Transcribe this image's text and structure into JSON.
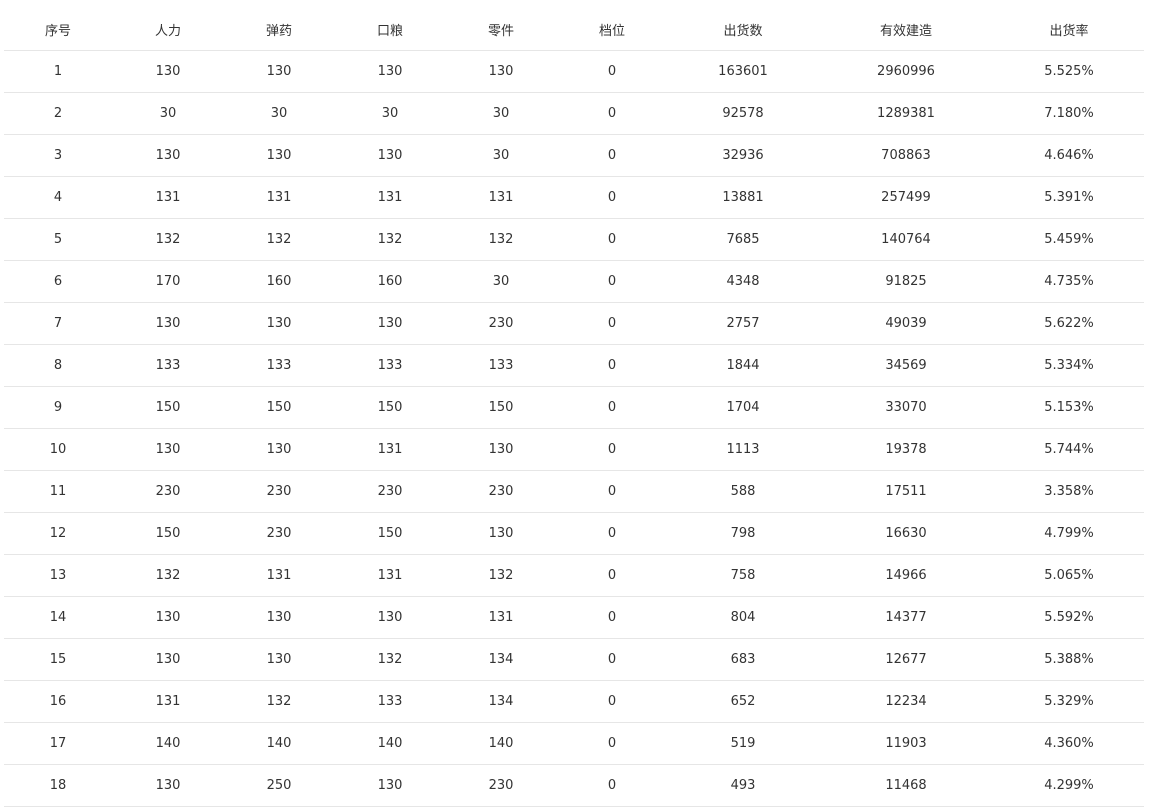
{
  "table": {
    "headers": [
      "序号",
      "人力",
      "弹药",
      "口粮",
      "零件",
      "档位",
      "出货数",
      "有效建造",
      "出货率"
    ],
    "rows": [
      [
        "1",
        "130",
        "130",
        "130",
        "130",
        "0",
        "163601",
        "2960996",
        "5.525%"
      ],
      [
        "2",
        "30",
        "30",
        "30",
        "30",
        "0",
        "92578",
        "1289381",
        "7.180%"
      ],
      [
        "3",
        "130",
        "130",
        "130",
        "30",
        "0",
        "32936",
        "708863",
        "4.646%"
      ],
      [
        "4",
        "131",
        "131",
        "131",
        "131",
        "0",
        "13881",
        "257499",
        "5.391%"
      ],
      [
        "5",
        "132",
        "132",
        "132",
        "132",
        "0",
        "7685",
        "140764",
        "5.459%"
      ],
      [
        "6",
        "170",
        "160",
        "160",
        "30",
        "0",
        "4348",
        "91825",
        "4.735%"
      ],
      [
        "7",
        "130",
        "130",
        "130",
        "230",
        "0",
        "2757",
        "49039",
        "5.622%"
      ],
      [
        "8",
        "133",
        "133",
        "133",
        "133",
        "0",
        "1844",
        "34569",
        "5.334%"
      ],
      [
        "9",
        "150",
        "150",
        "150",
        "150",
        "0",
        "1704",
        "33070",
        "5.153%"
      ],
      [
        "10",
        "130",
        "130",
        "131",
        "130",
        "0",
        "1113",
        "19378",
        "5.744%"
      ],
      [
        "11",
        "230",
        "230",
        "230",
        "230",
        "0",
        "588",
        "17511",
        "3.358%"
      ],
      [
        "12",
        "150",
        "230",
        "150",
        "130",
        "0",
        "798",
        "16630",
        "4.799%"
      ],
      [
        "13",
        "132",
        "131",
        "131",
        "132",
        "0",
        "758",
        "14966",
        "5.065%"
      ],
      [
        "14",
        "130",
        "130",
        "130",
        "131",
        "0",
        "804",
        "14377",
        "5.592%"
      ],
      [
        "15",
        "130",
        "130",
        "132",
        "134",
        "0",
        "683",
        "12677",
        "5.388%"
      ],
      [
        "16",
        "131",
        "132",
        "133",
        "134",
        "0",
        "652",
        "12234",
        "5.329%"
      ],
      [
        "17",
        "140",
        "140",
        "140",
        "140",
        "0",
        "519",
        "11903",
        "4.360%"
      ],
      [
        "18",
        "130",
        "250",
        "130",
        "230",
        "0",
        "493",
        "11468",
        "4.299%"
      ]
    ]
  }
}
